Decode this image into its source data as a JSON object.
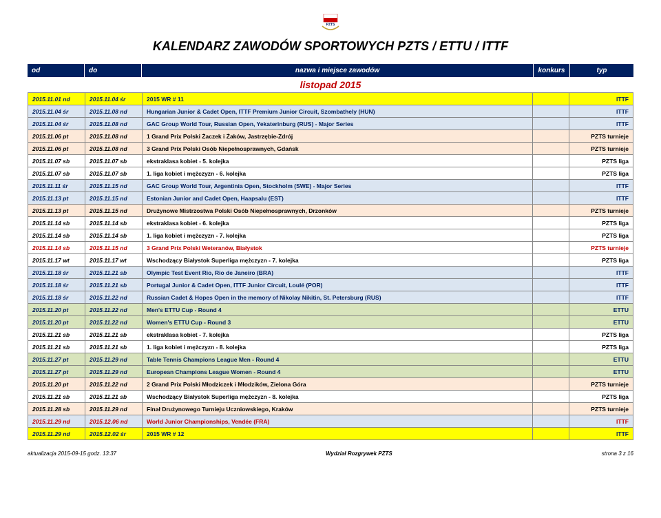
{
  "title": "KALENDARZ ZAWODÓW SPORTOWYCH PZTS / ETTU / ITTF",
  "headers": {
    "od": "od",
    "do": "do",
    "nazwa": "nazwa i miejsce zawodów",
    "konkurs": "konkurs",
    "typ": "typ"
  },
  "month": "listopad 2015",
  "rows": [
    {
      "od": "2015.11.01 nd",
      "do": "2015.11.04 śr",
      "nazwa": "2015 WR # 11",
      "typ": "ITTF",
      "bg": "bg-yellow",
      "fg": "c-blue"
    },
    {
      "od": "2015.11.04 śr",
      "do": "2015.11.08 nd",
      "nazwa": "Hungarian Junior & Cadet Open, ITTF Premium Junior Circuit, Szombathely (HUN)",
      "typ": "ITTF",
      "bg": "bg-blue",
      "fg": "c-blue"
    },
    {
      "od": "2015.11.04 śr",
      "do": "2015.11.08 nd",
      "nazwa": "GAC Group World Tour, Russian Open, Yekaterinburg (RUS) - Major Series",
      "typ": "ITTF",
      "bg": "bg-blue",
      "fg": "c-blue"
    },
    {
      "od": "2015.11.06 pt",
      "do": "2015.11.08 nd",
      "nazwa": "1 Grand Prix Polski Żaczek i Żaków, Jastrzębie-Zdrój",
      "typ": "PZTS turnieje",
      "bg": "bg-orange",
      "fg": "c-black"
    },
    {
      "od": "2015.11.06 pt",
      "do": "2015.11.08 nd",
      "nazwa": "3 Grand Prix Polski Osób Niepełnosprawnych, Gdańsk",
      "typ": "PZTS turnieje",
      "bg": "bg-orange",
      "fg": "c-black"
    },
    {
      "od": "2015.11.07 sb",
      "do": "2015.11.07 sb",
      "nazwa": "ekstraklasa kobiet - 5. kolejka",
      "typ": "PZTS liga",
      "bg": "",
      "fg": "c-black"
    },
    {
      "od": "2015.11.07 sb",
      "do": "2015.11.07 sb",
      "nazwa": "1. liga kobiet i mężczyzn - 6. kolejka",
      "typ": "PZTS liga",
      "bg": "",
      "fg": "c-black"
    },
    {
      "od": "2015.11.11 śr",
      "do": "2015.11.15 nd",
      "nazwa": "GAC Group World Tour, Argentinia Open, Stockholm (SWE) - Major Series",
      "typ": "ITTF",
      "bg": "bg-blue",
      "fg": "c-blue"
    },
    {
      "od": "2015.11.13 pt",
      "do": "2015.11.15 nd",
      "nazwa": "Estonian Junior and Cadet Open, Haapsalu (EST)",
      "typ": "ITTF",
      "bg": "bg-blue",
      "fg": "c-blue"
    },
    {
      "od": "2015.11.13 pt",
      "do": "2015.11.15 nd",
      "nazwa": "Drużynowe Mistrzostwa Polski Osób Niepełnosprawnych, Drzonków",
      "typ": "PZTS turnieje",
      "bg": "bg-orange",
      "fg": "c-black"
    },
    {
      "od": "2015.11.14 sb",
      "do": "2015.11.14 sb",
      "nazwa": "ekstraklasa kobiet - 6. kolejka",
      "typ": "PZTS liga",
      "bg": "",
      "fg": "c-black"
    },
    {
      "od": "2015.11.14 sb",
      "do": "2015.11.14 sb",
      "nazwa": "1. liga kobiet i mężczyzn - 7. kolejka",
      "typ": "PZTS liga",
      "bg": "",
      "fg": "c-black"
    },
    {
      "od": "2015.11.14 sb",
      "do": "2015.11.15 nd",
      "nazwa": "3 Grand Prix Polski Weteranów, Białystok",
      "typ": "PZTS turnieje",
      "bg": "",
      "fg": "c-red"
    },
    {
      "od": "2015.11.17 wt",
      "do": "2015.11.17 wt",
      "nazwa": "Wschodzący Białystok Superliga mężczyzn - 7. kolejka",
      "typ": "PZTS liga",
      "bg": "",
      "fg": "c-black"
    },
    {
      "od": "2015.11.18 śr",
      "do": "2015.11.21 sb",
      "nazwa": "Olympic Test Event Rio, Rio de Janeiro (BRA)",
      "typ": "ITTF",
      "bg": "bg-blue",
      "fg": "c-blue"
    },
    {
      "od": "2015.11.18 śr",
      "do": "2015.11.21 sb",
      "nazwa": "Portugal Junior & Cadet Open, ITTF Junior Circuit, Loulé (POR)",
      "typ": "ITTF",
      "bg": "bg-blue",
      "fg": "c-blue"
    },
    {
      "od": "2015.11.18 śr",
      "do": "2015.11.22 nd",
      "nazwa": "Russian Cadet & Hopes Open in the memory of Nikolay Nikitin, St. Petersburg (RUS)",
      "typ": "ITTF",
      "bg": "bg-blue",
      "fg": "c-blue"
    },
    {
      "od": "2015.11.20 pt",
      "do": "2015.11.22 nd",
      "nazwa": "Men's ETTU Cup - Round 4",
      "typ": "ETTU",
      "bg": "bg-green",
      "fg": "c-blue"
    },
    {
      "od": "2015.11.20 pt",
      "do": "2015.11.22 nd",
      "nazwa": "Women's ETTU Cup - Round 3",
      "typ": "ETTU",
      "bg": "bg-green",
      "fg": "c-blue"
    },
    {
      "od": "2015.11.21 sb",
      "do": "2015.11.21 sb",
      "nazwa": "ekstraklasa kobiet - 7. kolejka",
      "typ": "PZTS liga",
      "bg": "",
      "fg": "c-black"
    },
    {
      "od": "2015.11.21 sb",
      "do": "2015.11.21 sb",
      "nazwa": "1. liga kobiet i mężczyzn - 8. kolejka",
      "typ": "PZTS liga",
      "bg": "",
      "fg": "c-black"
    },
    {
      "od": "2015.11.27 pt",
      "do": "2015.11.29 nd",
      "nazwa": "Table Tennis Champions League Men - Round 4",
      "typ": "ETTU",
      "bg": "bg-green",
      "fg": "c-blue"
    },
    {
      "od": "2015.11.27 pt",
      "do": "2015.11.29 nd",
      "nazwa": "European Champions League Women - Round 4",
      "typ": "ETTU",
      "bg": "bg-green",
      "fg": "c-blue"
    },
    {
      "od": "2015.11.20 pt",
      "do": "2015.11.22 nd",
      "nazwa": "2 Grand Prix Polski Młodziczek i Młodzików, Zielona Góra",
      "typ": "PZTS turnieje",
      "bg": "bg-orange",
      "fg": "c-black"
    },
    {
      "od": "2015.11.21 sb",
      "do": "2015.11.21 sb",
      "nazwa": "Wschodzący Białystok Superliga mężczyzn - 8. kolejka",
      "typ": "PZTS liga",
      "bg": "",
      "fg": "c-black"
    },
    {
      "od": "2015.11.28 sb",
      "do": "2015.11.29 nd",
      "nazwa": "Finał Drużynowego Turnieju Uczniowskiego, Kraków",
      "typ": "PZTS turnieje",
      "bg": "bg-orange",
      "fg": "c-black"
    },
    {
      "od": "2015.11.29 nd",
      "do": "2015.12.06 nd",
      "nazwa": "World Junior Championships, Vendée (FRA)",
      "typ": "ITTF",
      "bg": "bg-blue",
      "fg": "c-red"
    },
    {
      "od": "2015.11.29 nd",
      "do": "2015.12.02 śr",
      "nazwa": "2015 WR # 12",
      "typ": "ITTF",
      "bg": "bg-yellow",
      "fg": "c-blue"
    }
  ],
  "footer": {
    "left": "aktualizacja 2015-09-15 godz. 13:37",
    "center": "Wydział Rozgrywek PZTS",
    "right": "strona 3 z 16"
  }
}
